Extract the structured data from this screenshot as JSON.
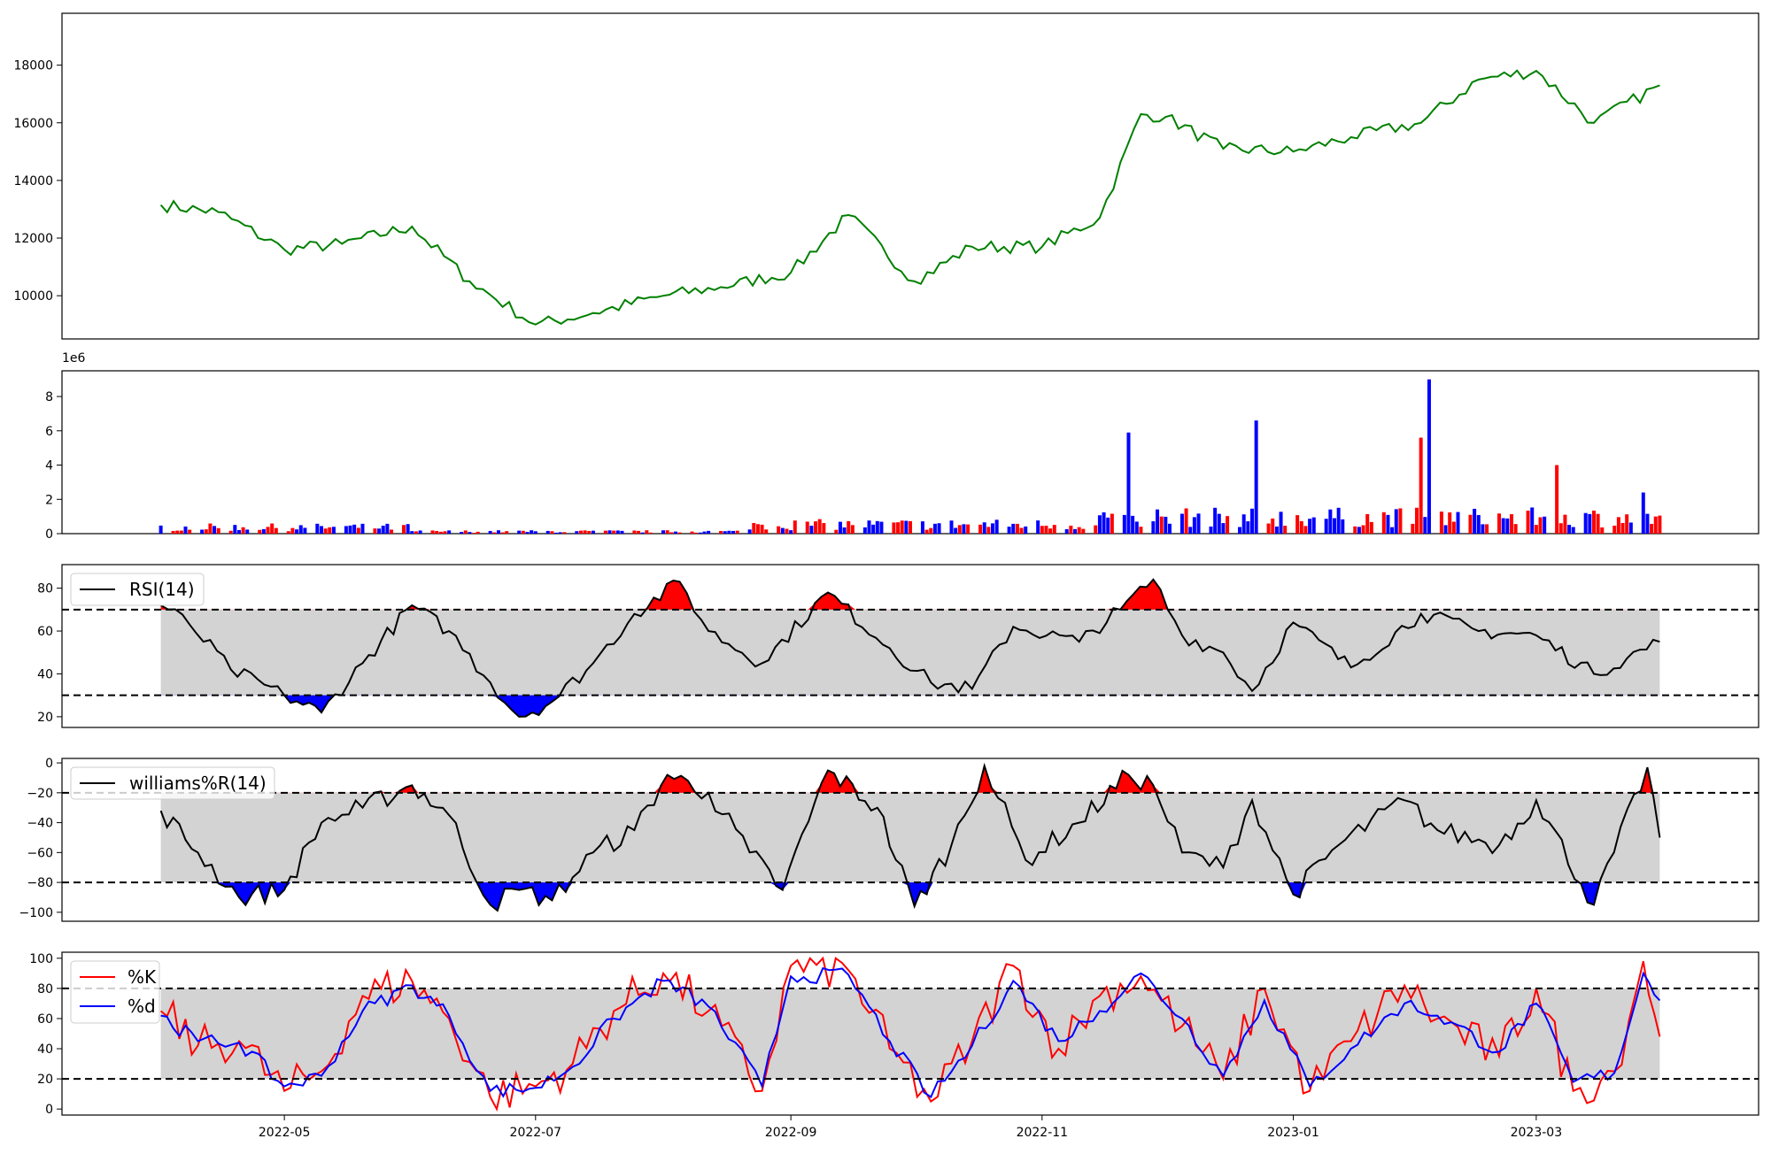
{
  "chart_data": [
    {
      "panel": "price",
      "type": "line",
      "yticks": [
        10000,
        12000,
        14000,
        16000,
        18000
      ],
      "ylim": [
        8500,
        19800
      ],
      "color": "#008000",
      "x": [
        "2022-04-01",
        "2022-04-15",
        "2022-05-01",
        "2022-05-15",
        "2022-06-01",
        "2022-06-15",
        "2022-07-01",
        "2022-07-15",
        "2022-08-01",
        "2022-08-15",
        "2022-09-01",
        "2022-09-15",
        "2022-10-01",
        "2022-10-15",
        "2022-11-01",
        "2022-11-15",
        "2022-11-25",
        "2022-12-01",
        "2022-12-15",
        "2023-01-01",
        "2023-01-15",
        "2023-02-01",
        "2023-02-15",
        "2023-03-01",
        "2023-03-15",
        "2023-03-31"
      ],
      "values": [
        13150,
        12900,
        11600,
        11800,
        12400,
        10500,
        9000,
        9400,
        10000,
        10300,
        10800,
        12800,
        10500,
        11700,
        11700,
        12700,
        16300,
        16200,
        15100,
        15000,
        15500,
        16000,
        17500,
        17800,
        16000,
        17300
      ]
    },
    {
      "panel": "volume",
      "type": "bar",
      "exponent_label": "1e6",
      "yticks": [
        0,
        2,
        4,
        6,
        8
      ],
      "ylim": [
        0,
        9.5
      ],
      "colors": {
        "up": "#ff0000",
        "down": "#0000ff",
        "flat": "#000000"
      },
      "spikes": [
        {
          "x": "2022-11-22",
          "value": 5.9
        },
        {
          "x": "2022-12-23",
          "value": 6.6
        },
        {
          "x": "2023-02-01",
          "value": 5.6
        },
        {
          "x": "2023-02-03",
          "value": 9.0
        },
        {
          "x": "2023-03-06",
          "value": 4.0
        },
        {
          "x": "2023-03-27",
          "value": 2.4
        }
      ]
    },
    {
      "panel": "rsi",
      "type": "line",
      "legend": "RSI(14)",
      "yticks": [
        20,
        40,
        60,
        80
      ],
      "ylim": [
        15,
        91
      ],
      "upper": 70,
      "lower": 30,
      "colors": {
        "line": "#000000",
        "band": "#d3d3d3",
        "over": "#ff0000",
        "under": "#0000ff"
      },
      "x": [
        "2022-04-01",
        "2022-04-08",
        "2022-04-18",
        "2022-05-01",
        "2022-05-10",
        "2022-05-20",
        "2022-06-01",
        "2022-06-10",
        "2022-06-20",
        "2022-06-27",
        "2022-07-05",
        "2022-07-15",
        "2022-07-25",
        "2022-08-05",
        "2022-08-12",
        "2022-08-25",
        "2022-09-10",
        "2022-09-25",
        "2022-10-05",
        "2022-10-15",
        "2022-10-25",
        "2022-11-10",
        "2022-11-20",
        "2022-11-28",
        "2022-12-05",
        "2022-12-15",
        "2022-12-22",
        "2023-01-01",
        "2023-01-15",
        "2023-02-01",
        "2023-02-15",
        "2023-03-01",
        "2023-03-15",
        "2023-03-31"
      ],
      "values": [
        72,
        63,
        42,
        30,
        22,
        45,
        72,
        60,
        36,
        20,
        27,
        45,
        68,
        83,
        60,
        45,
        78,
        52,
        36,
        33,
        62,
        55,
        70,
        84,
        58,
        50,
        32,
        64,
        43,
        68,
        60,
        58,
        40,
        55
      ]
    },
    {
      "panel": "williams",
      "type": "line",
      "legend": "williams%R(14)",
      "yticks": [
        0,
        -20,
        -40,
        -60,
        -80,
        -100
      ],
      "ylim": [
        -106,
        3
      ],
      "upper": -20,
      "lower": -80,
      "colors": {
        "line": "#000000",
        "band": "#d3d3d3",
        "over": "#ff0000",
        "under": "#0000ff"
      },
      "x": [
        "2022-04-01",
        "2022-04-10",
        "2022-04-20",
        "2022-05-01",
        "2022-05-10",
        "2022-05-20",
        "2022-06-01",
        "2022-06-10",
        "2022-06-20",
        "2022-06-27",
        "2022-07-05",
        "2022-07-15",
        "2022-07-25",
        "2022-08-02",
        "2022-08-12",
        "2022-08-22",
        "2022-08-30",
        "2022-09-10",
        "2022-09-22",
        "2022-10-01",
        "2022-10-10",
        "2022-10-18",
        "2022-10-28",
        "2022-11-10",
        "2022-11-22",
        "2022-11-28",
        "2022-12-05",
        "2022-12-15",
        "2022-12-22",
        "2023-01-01",
        "2023-01-12",
        "2023-01-28",
        "2023-02-05",
        "2023-02-20",
        "2023-03-01",
        "2023-03-15",
        "2023-03-28",
        "2023-03-31"
      ],
      "values": [
        -32,
        -60,
        -90,
        -85,
        -40,
        -30,
        -15,
        -35,
        -95,
        -85,
        -92,
        -60,
        -45,
        -8,
        -20,
        -60,
        -85,
        -5,
        -30,
        -96,
        -55,
        -2,
        -65,
        -40,
        -8,
        -15,
        -60,
        -70,
        -25,
        -88,
        -55,
        -25,
        -45,
        -55,
        -25,
        -95,
        -3,
        -50
      ]
    },
    {
      "panel": "stochastic",
      "type": "line",
      "legend": [
        "%K",
        "%d"
      ],
      "yticks": [
        0,
        20,
        40,
        60,
        80,
        100
      ],
      "ylim": [
        -4,
        104
      ],
      "upper": 80,
      "lower": 20,
      "colors": {
        "k": "#ff0000",
        "d": "#0000ff",
        "band": "#d3d3d3"
      },
      "xticks": [
        "2022-05",
        "2022-07",
        "2022-09",
        "2022-11",
        "2023-01",
        "2023-03"
      ],
      "x": [
        "2022-04-01",
        "2022-04-10",
        "2022-04-20",
        "2022-05-01",
        "2022-05-10",
        "2022-05-20",
        "2022-06-01",
        "2022-06-10",
        "2022-06-20",
        "2022-07-01",
        "2022-07-10",
        "2022-07-20",
        "2022-08-01",
        "2022-08-12",
        "2022-08-25",
        "2022-09-01",
        "2022-09-15",
        "2022-09-25",
        "2022-10-05",
        "2022-10-15",
        "2022-10-25",
        "2022-11-05",
        "2022-11-15",
        "2022-11-25",
        "2022-12-05",
        "2022-12-15",
        "2022-12-25",
        "2023-01-05",
        "2023-01-15",
        "2023-01-28",
        "2023-02-05",
        "2023-02-20",
        "2023-03-01",
        "2023-03-10",
        "2023-03-20",
        "2023-03-27",
        "2023-03-31"
      ],
      "k": [
        65,
        42,
        45,
        12,
        25,
        75,
        85,
        60,
        8,
        15,
        30,
        65,
        90,
        65,
        12,
        95,
        92,
        40,
        5,
        45,
        95,
        40,
        75,
        88,
        55,
        20,
        80,
        12,
        45,
        82,
        60,
        35,
        80,
        12,
        25,
        98,
        48
      ],
      "d": [
        62,
        45,
        44,
        15,
        22,
        65,
        82,
        62,
        12,
        14,
        28,
        60,
        85,
        68,
        15,
        88,
        89,
        45,
        8,
        42,
        85,
        45,
        65,
        90,
        60,
        22,
        72,
        15,
        40,
        70,
        62,
        38,
        70,
        18,
        24,
        90,
        72
      ]
    }
  ]
}
